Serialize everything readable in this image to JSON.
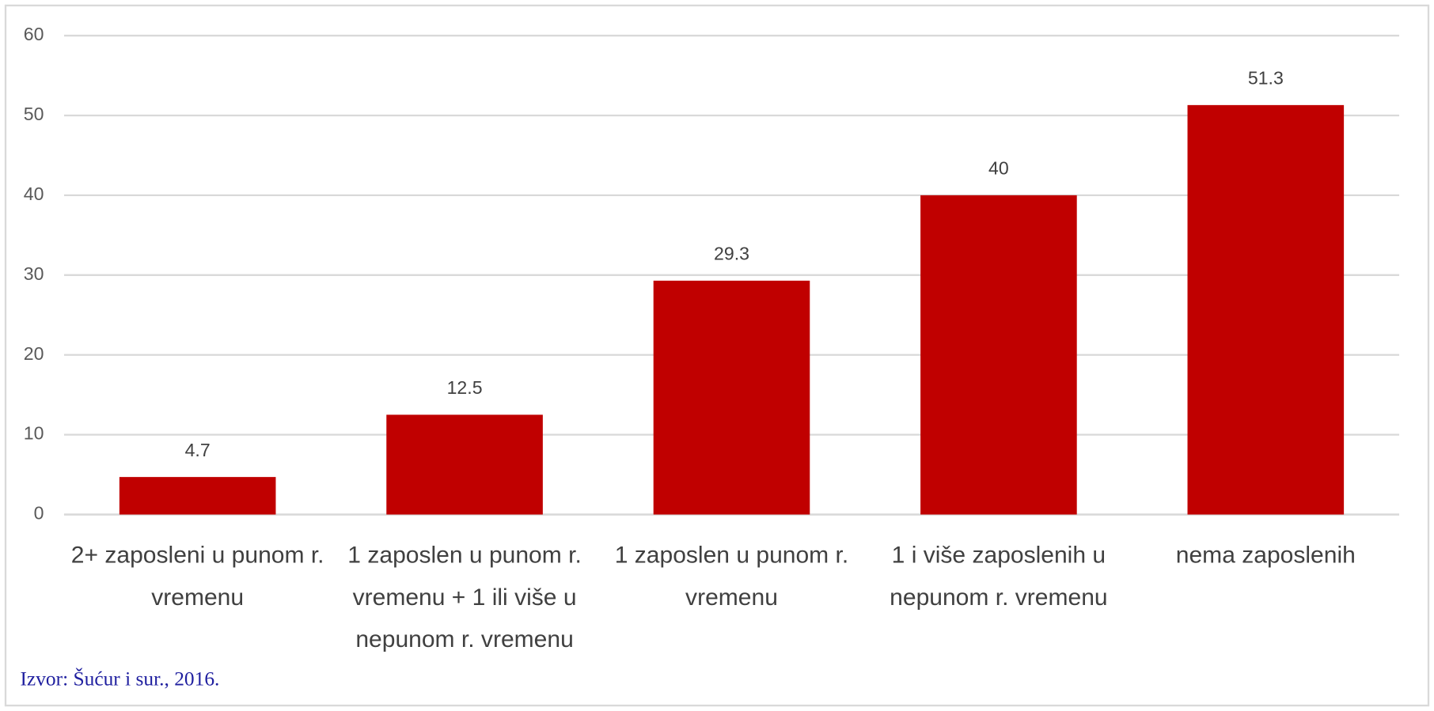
{
  "chart_data": {
    "type": "bar",
    "categories": [
      "2+ zaposleni u punom r. vremenu",
      "1 zaposlen u punom r. vremenu + 1 ili više u nepunom r. vremenu",
      "1 zaposlen u punom r. vremenu",
      "1 i više zaposlenih u nepunom r. vremenu",
      "nema zaposlenih"
    ],
    "values": [
      4.7,
      12.5,
      29.3,
      40,
      51.3
    ],
    "color": "#c00000",
    "ylim": [
      0,
      60
    ],
    "yticks": [
      0,
      10,
      20,
      30,
      40,
      50,
      60
    ],
    "grid": true,
    "source": "Izvor: Šućur i sur., 2016."
  }
}
